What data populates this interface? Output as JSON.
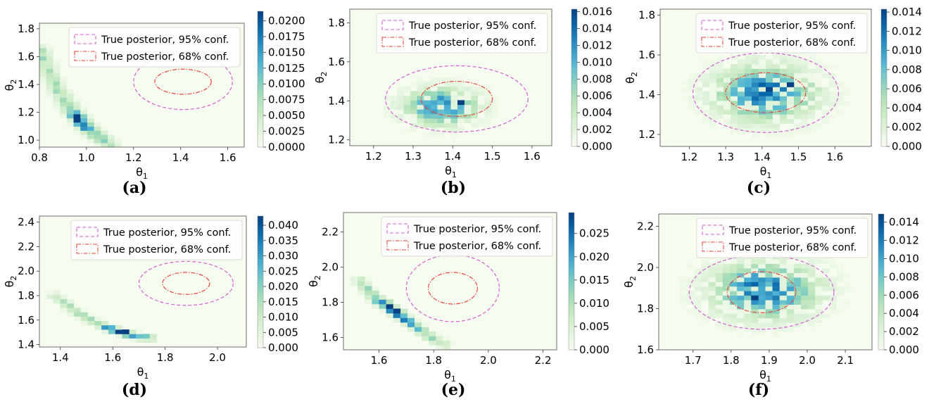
{
  "chart_data": [
    {
      "panel": "(a)",
      "type": "heatmap",
      "xlabel": "θ1",
      "ylabel": "θ2",
      "xlim": [
        0.8,
        1.67
      ],
      "ylim": [
        0.95,
        1.84
      ],
      "xticks": [
        0.8,
        1.0,
        1.2,
        1.4,
        1.6
      ],
      "xtick_labels": [
        "0.8",
        "1.0",
        "1.2",
        "1.4",
        "1.6"
      ],
      "yticks": [
        1.0,
        1.2,
        1.4,
        1.6,
        1.8
      ],
      "ytick_labels": [
        "1.0",
        "1.2",
        "1.4",
        "1.6",
        "1.8"
      ],
      "cbar_max": 0.0215,
      "cbar_ticks": [
        0,
        0.0025,
        0.005,
        0.0075,
        0.01,
        0.0125,
        0.015,
        0.0175,
        0.02
      ],
      "cbar_tick_labels": [
        "0.0000",
        "0.0025",
        "0.0050",
        "0.0075",
        "0.0100",
        "0.0125",
        "0.0150",
        "0.0175",
        "0.0200"
      ],
      "distribution": {
        "shape": "curve",
        "points": [
          [
            0.8,
            1.65
          ],
          [
            0.86,
            1.42
          ],
          [
            0.92,
            1.25
          ],
          [
            0.98,
            1.13
          ],
          [
            1.04,
            1.04
          ],
          [
            1.1,
            0.97
          ]
        ],
        "spread": 0.045,
        "peak": [
          0.97,
          1.14
        ]
      },
      "ellipses": {
        "center": [
          1.41,
          1.42
        ],
        "conf95_radii": [
          0.21,
          0.2
        ],
        "conf68_radii": [
          0.12,
          0.09
        ]
      },
      "legend": [
        "True posterior, 95% conf.",
        "True posterior, 68% conf."
      ],
      "legend_position": "upper-right"
    },
    {
      "panel": "(b)",
      "type": "heatmap",
      "xlabel": "θ1",
      "ylabel": "θ2",
      "xlim": [
        1.14,
        1.65
      ],
      "ylim": [
        1.17,
        1.87
      ],
      "xticks": [
        1.2,
        1.3,
        1.4,
        1.5,
        1.6
      ],
      "xtick_labels": [
        "1.2",
        "1.3",
        "1.4",
        "1.5",
        "1.6"
      ],
      "yticks": [
        1.2,
        1.4,
        1.6,
        1.8
      ],
      "ytick_labels": [
        "1.2",
        "1.4",
        "1.6",
        "1.8"
      ],
      "cbar_max": 0.0163,
      "cbar_ticks": [
        0,
        0.002,
        0.004,
        0.006,
        0.008,
        0.01,
        0.012,
        0.014,
        0.016
      ],
      "cbar_tick_labels": [
        "0.000",
        "0.002",
        "0.004",
        "0.006",
        "0.008",
        "0.010",
        "0.012",
        "0.014",
        "0.016"
      ],
      "distribution": {
        "shape": "blob",
        "center": [
          1.37,
          1.37
        ],
        "sigma": [
          0.06,
          0.06
        ],
        "peak": [
          1.42,
          1.4
        ]
      },
      "ellipses": {
        "center": [
          1.41,
          1.41
        ],
        "conf95_radii": [
          0.18,
          0.17
        ],
        "conf68_radii": [
          0.09,
          0.09
        ]
      },
      "legend": [
        "True posterior, 95% conf.",
        "True posterior, 68% conf."
      ],
      "legend_position": "upper-right"
    },
    {
      "panel": "(c)",
      "type": "heatmap",
      "xlabel": "θ1",
      "ylabel": "θ2",
      "xlim": [
        1.12,
        1.7
      ],
      "ylim": [
        1.14,
        1.83
      ],
      "xticks": [
        1.2,
        1.3,
        1.4,
        1.5,
        1.6
      ],
      "xtick_labels": [
        "1.2",
        "1.3",
        "1.4",
        "1.5",
        "1.6"
      ],
      "yticks": [
        1.2,
        1.4,
        1.6,
        1.8
      ],
      "ytick_labels": [
        "1.2",
        "1.4",
        "1.6",
        "1.8"
      ],
      "cbar_max": 0.0143,
      "cbar_ticks": [
        0,
        0.002,
        0.004,
        0.006,
        0.008,
        0.01,
        0.012,
        0.014
      ],
      "cbar_tick_labels": [
        "0.000",
        "0.002",
        "0.004",
        "0.006",
        "0.008",
        "0.010",
        "0.012",
        "0.014"
      ],
      "distribution": {
        "shape": "blob",
        "center": [
          1.41,
          1.41
        ],
        "sigma": [
          0.09,
          0.09
        ],
        "peak": [
          1.48,
          1.46
        ]
      },
      "ellipses": {
        "center": [
          1.41,
          1.41
        ],
        "conf95_radii": [
          0.2,
          0.2
        ],
        "conf68_radii": [
          0.11,
          0.1
        ]
      },
      "legend": [
        "True posterior, 95% conf.",
        "True posterior, 68% conf."
      ],
      "legend_position": "upper-right"
    },
    {
      "panel": "(d)",
      "type": "heatmap",
      "xlabel": "θ1",
      "ylabel": "θ2",
      "xlim": [
        1.32,
        2.11
      ],
      "ylim": [
        1.38,
        2.45
      ],
      "xticks": [
        1.4,
        1.6,
        1.8,
        2.0
      ],
      "xtick_labels": [
        "1.4",
        "1.6",
        "1.8",
        "2.0"
      ],
      "yticks": [
        1.4,
        1.6,
        1.8,
        2.0,
        2.2,
        2.4
      ],
      "ytick_labels": [
        "1.4",
        "1.6",
        "1.8",
        "2.0",
        "2.2",
        "2.4"
      ],
      "cbar_max": 0.043,
      "cbar_ticks": [
        0,
        0.005,
        0.01,
        0.015,
        0.02,
        0.025,
        0.03,
        0.035,
        0.04
      ],
      "cbar_tick_labels": [
        "0.000",
        "0.005",
        "0.010",
        "0.015",
        "0.020",
        "0.025",
        "0.030",
        "0.035",
        "0.040"
      ],
      "distribution": {
        "shape": "curve",
        "points": [
          [
            1.38,
            1.8
          ],
          [
            1.45,
            1.68
          ],
          [
            1.52,
            1.59
          ],
          [
            1.6,
            1.52
          ],
          [
            1.68,
            1.47
          ],
          [
            1.74,
            1.45
          ]
        ],
        "spread": 0.03,
        "peak": [
          1.65,
          1.51
        ]
      },
      "ellipses": {
        "center": [
          1.88,
          1.9
        ],
        "conf95_radii": [
          0.18,
          0.18
        ],
        "conf68_radii": [
          0.09,
          0.09
        ]
      },
      "legend": [
        "True posterior, 95% conf.",
        "True posterior, 68% conf."
      ],
      "legend_position": "upper-right"
    },
    {
      "panel": "(e)",
      "type": "heatmap",
      "xlabel": "θ1",
      "ylabel": "θ2",
      "xlim": [
        1.47,
        2.25
      ],
      "ylim": [
        1.53,
        2.31
      ],
      "xticks": [
        1.6,
        1.8,
        2.0,
        2.2
      ],
      "xtick_labels": [
        "1.6",
        "1.8",
        "2.0",
        "2.2"
      ],
      "yticks": [
        1.6,
        1.8,
        2.0,
        2.2
      ],
      "ytick_labels": [
        "1.6",
        "1.8",
        "2.0",
        "2.2"
      ],
      "cbar_max": 0.0295,
      "cbar_ticks": [
        0,
        0.005,
        0.01,
        0.015,
        0.02,
        0.025
      ],
      "cbar_tick_labels": [
        "0.000",
        "0.005",
        "0.010",
        "0.015",
        "0.020",
        "0.025"
      ],
      "distribution": {
        "shape": "curve",
        "points": [
          [
            1.53,
            1.92
          ],
          [
            1.58,
            1.83
          ],
          [
            1.64,
            1.77
          ],
          [
            1.7,
            1.7
          ],
          [
            1.76,
            1.63
          ],
          [
            1.84,
            1.56
          ]
        ],
        "spread": 0.03,
        "peak": [
          1.66,
          1.75
        ]
      },
      "ellipses": {
        "center": [
          1.87,
          1.88
        ],
        "conf95_radii": [
          0.17,
          0.19
        ],
        "conf68_radii": [
          0.09,
          0.09
        ]
      },
      "legend": [
        "True posterior, 95% conf.",
        "True posterior, 68% conf."
      ],
      "legend_position": "upper-right"
    },
    {
      "panel": "(f)",
      "type": "heatmap",
      "xlabel": "θ1",
      "ylabel": "θ2",
      "xlim": [
        1.61,
        2.17
      ],
      "ylim": [
        1.6,
        2.26
      ],
      "xticks": [
        1.7,
        1.8,
        1.9,
        2.0,
        2.1
      ],
      "xtick_labels": [
        "1.7",
        "1.8",
        "1.9",
        "2.0",
        "2.1"
      ],
      "yticks": [
        1.6,
        1.8,
        2.0,
        2.2
      ],
      "ytick_labels": [
        "1.6",
        "1.8",
        "2.0",
        "2.2"
      ],
      "cbar_max": 0.0149,
      "cbar_ticks": [
        0,
        0.002,
        0.004,
        0.006,
        0.008,
        0.01,
        0.012,
        0.014
      ],
      "cbar_tick_labels": [
        "0.000",
        "0.002",
        "0.004",
        "0.006",
        "0.008",
        "0.010",
        "0.012",
        "0.014"
      ],
      "distribution": {
        "shape": "blob",
        "center": [
          1.89,
          1.89
        ],
        "sigma": [
          0.09,
          0.09
        ],
        "peak": [
          1.86,
          1.86
        ]
      },
      "ellipses": {
        "center": [
          1.88,
          1.88
        ],
        "conf95_radii": [
          0.19,
          0.18
        ],
        "conf68_radii": [
          0.09,
          0.1
        ]
      },
      "legend": [
        "True posterior, 95% conf.",
        "True posterior, 68% conf."
      ],
      "legend_position": "upper-right"
    }
  ],
  "colors": {
    "colormap": [
      "#f7fcf0",
      "#e0f3db",
      "#ccebc5",
      "#a8ddb5",
      "#7bccc4",
      "#4eb3d3",
      "#2b8cbe",
      "#0868ac",
      "#084081"
    ],
    "conf95": "#d65fd6",
    "conf68": "#e8463c"
  }
}
